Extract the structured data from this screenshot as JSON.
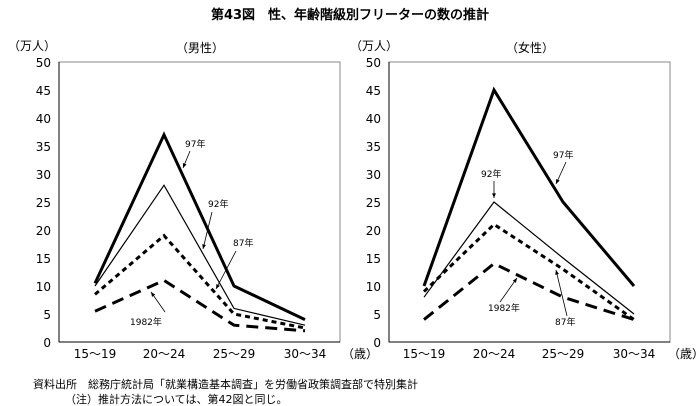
{
  "title": "第43図　性、年齢階級別フリーターの数の推計",
  "notes": {
    "source": "資料出所　総務庁統計局「就業構造基本調査」を労働省政策調査部で特別集計",
    "method": "（注）推計方法については、第42図と同じ。"
  },
  "chart_data": [
    {
      "type": "line",
      "title": "（男性）",
      "ylabel": "（万人）",
      "xlabel": "（歳）",
      "categories": [
        "15～19",
        "20～24",
        "25～29",
        "30～34"
      ],
      "ylim": [
        0,
        50
      ],
      "yticks": [
        "0",
        "5",
        "10",
        "15",
        "20",
        "25",
        "30",
        "35",
        "40",
        "45",
        "50"
      ],
      "grid": false,
      "series": [
        {
          "name": "97年",
          "values": [
            10.5,
            37,
            10,
            4
          ],
          "style": "thick-solid"
        },
        {
          "name": "92年",
          "values": [
            10,
            28,
            6,
            3
          ],
          "style": "thin-solid"
        },
        {
          "name": "87年",
          "values": [
            8.5,
            19,
            5,
            2.5
          ],
          "style": "dotted"
        },
        {
          "name": "1982年",
          "values": [
            5.5,
            11,
            3,
            2
          ],
          "style": "dashed"
        }
      ]
    },
    {
      "type": "line",
      "title": "（女性）",
      "ylabel": "（万人）",
      "xlabel": "（歳）",
      "categories": [
        "15～19",
        "20～24",
        "25～29",
        "30～34"
      ],
      "ylim": [
        0,
        50
      ],
      "yticks": [
        "0",
        "5",
        "10",
        "15",
        "20",
        "25",
        "30",
        "35",
        "40",
        "45",
        "50"
      ],
      "grid": false,
      "series": [
        {
          "name": "97年",
          "values": [
            10,
            45,
            25,
            10
          ],
          "style": "thick-solid"
        },
        {
          "name": "92年",
          "values": [
            8,
            25,
            15,
            5
          ],
          "style": "thin-solid"
        },
        {
          "name": "87年",
          "values": [
            9,
            21,
            13,
            4
          ],
          "style": "dotted"
        },
        {
          "name": "1982年",
          "values": [
            4,
            14,
            8,
            4
          ],
          "style": "dashed"
        }
      ]
    }
  ]
}
